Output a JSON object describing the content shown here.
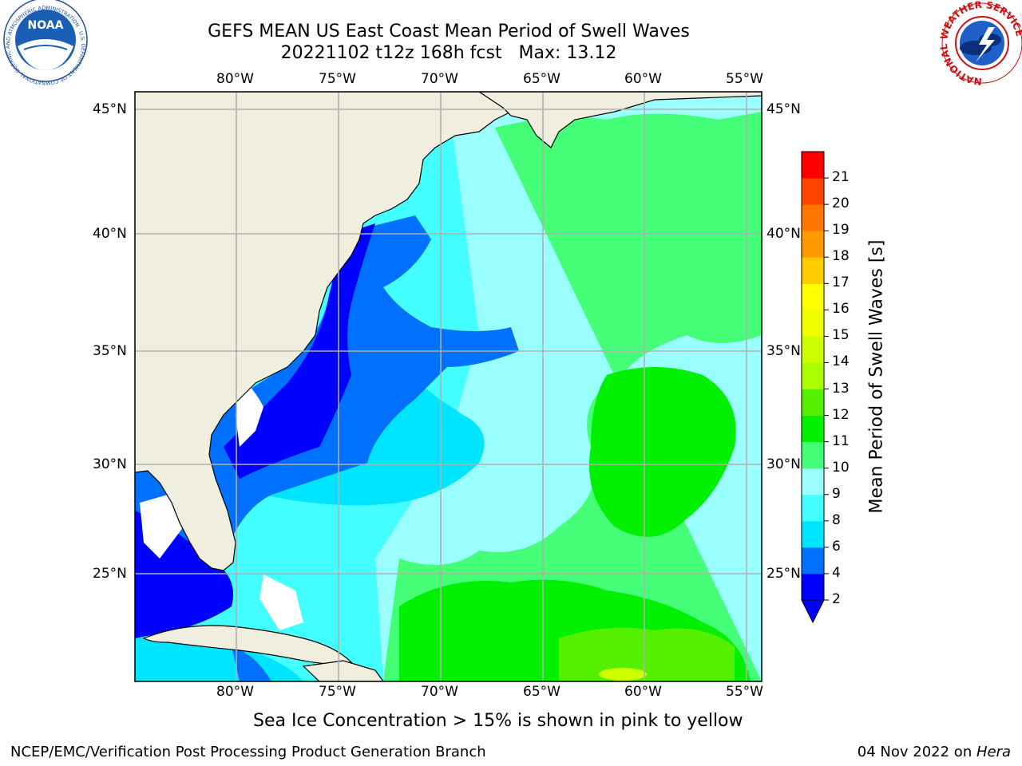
{
  "header": {
    "title_line1": "GEFS MEAN US East Coast Mean Period of Swell Waves",
    "title_line2": "20221102 t12z 168h fcst   Max: 13.12"
  },
  "logos": {
    "noaa_text": "NOAA",
    "noaa_ring_text": "NATIONAL OCEANIC AND ATMOSPHERIC ADMINISTRATION · U.S. DEPARTMENT OF COMMERCE",
    "nws_ring_text": "NATIONAL WEATHER SERVICE"
  },
  "map": {
    "lon_labels": [
      "80°W",
      "75°W",
      "70°W",
      "65°W",
      "60°W",
      "55°W"
    ],
    "lat_labels": [
      "45°N",
      "40°N",
      "35°N",
      "30°N",
      "25°N"
    ],
    "land_color": "#efeedf",
    "grid_color": "#b0b0b0"
  },
  "colorbar": {
    "label": "Mean Period of Swell Waves [s]",
    "ticks": [
      "2",
      "4",
      "6",
      "8",
      "9",
      "10",
      "11",
      "12",
      "13",
      "14",
      "15",
      "16",
      "17",
      "18",
      "19",
      "20",
      "21"
    ],
    "colors": [
      "#0000ff",
      "#0070ff",
      "#00e5ff",
      "#44ffff",
      "#99ffff",
      "#44ff77",
      "#00f000",
      "#55f000",
      "#aaff00",
      "#ccff00",
      "#eeff00",
      "#ffff00",
      "#ffcc00",
      "#ff9900",
      "#ff7700",
      "#ff4400",
      "#ff0000"
    ],
    "extend_color": "#0000ff"
  },
  "footnote": "Sea Ice Concentration > 15% is shown in pink to yellow",
  "footer": {
    "left": "NCEP/EMC/Verification Post Processing Product Generation Branch",
    "date": "04 Nov 2022 on ",
    "machine": "Hera"
  }
}
